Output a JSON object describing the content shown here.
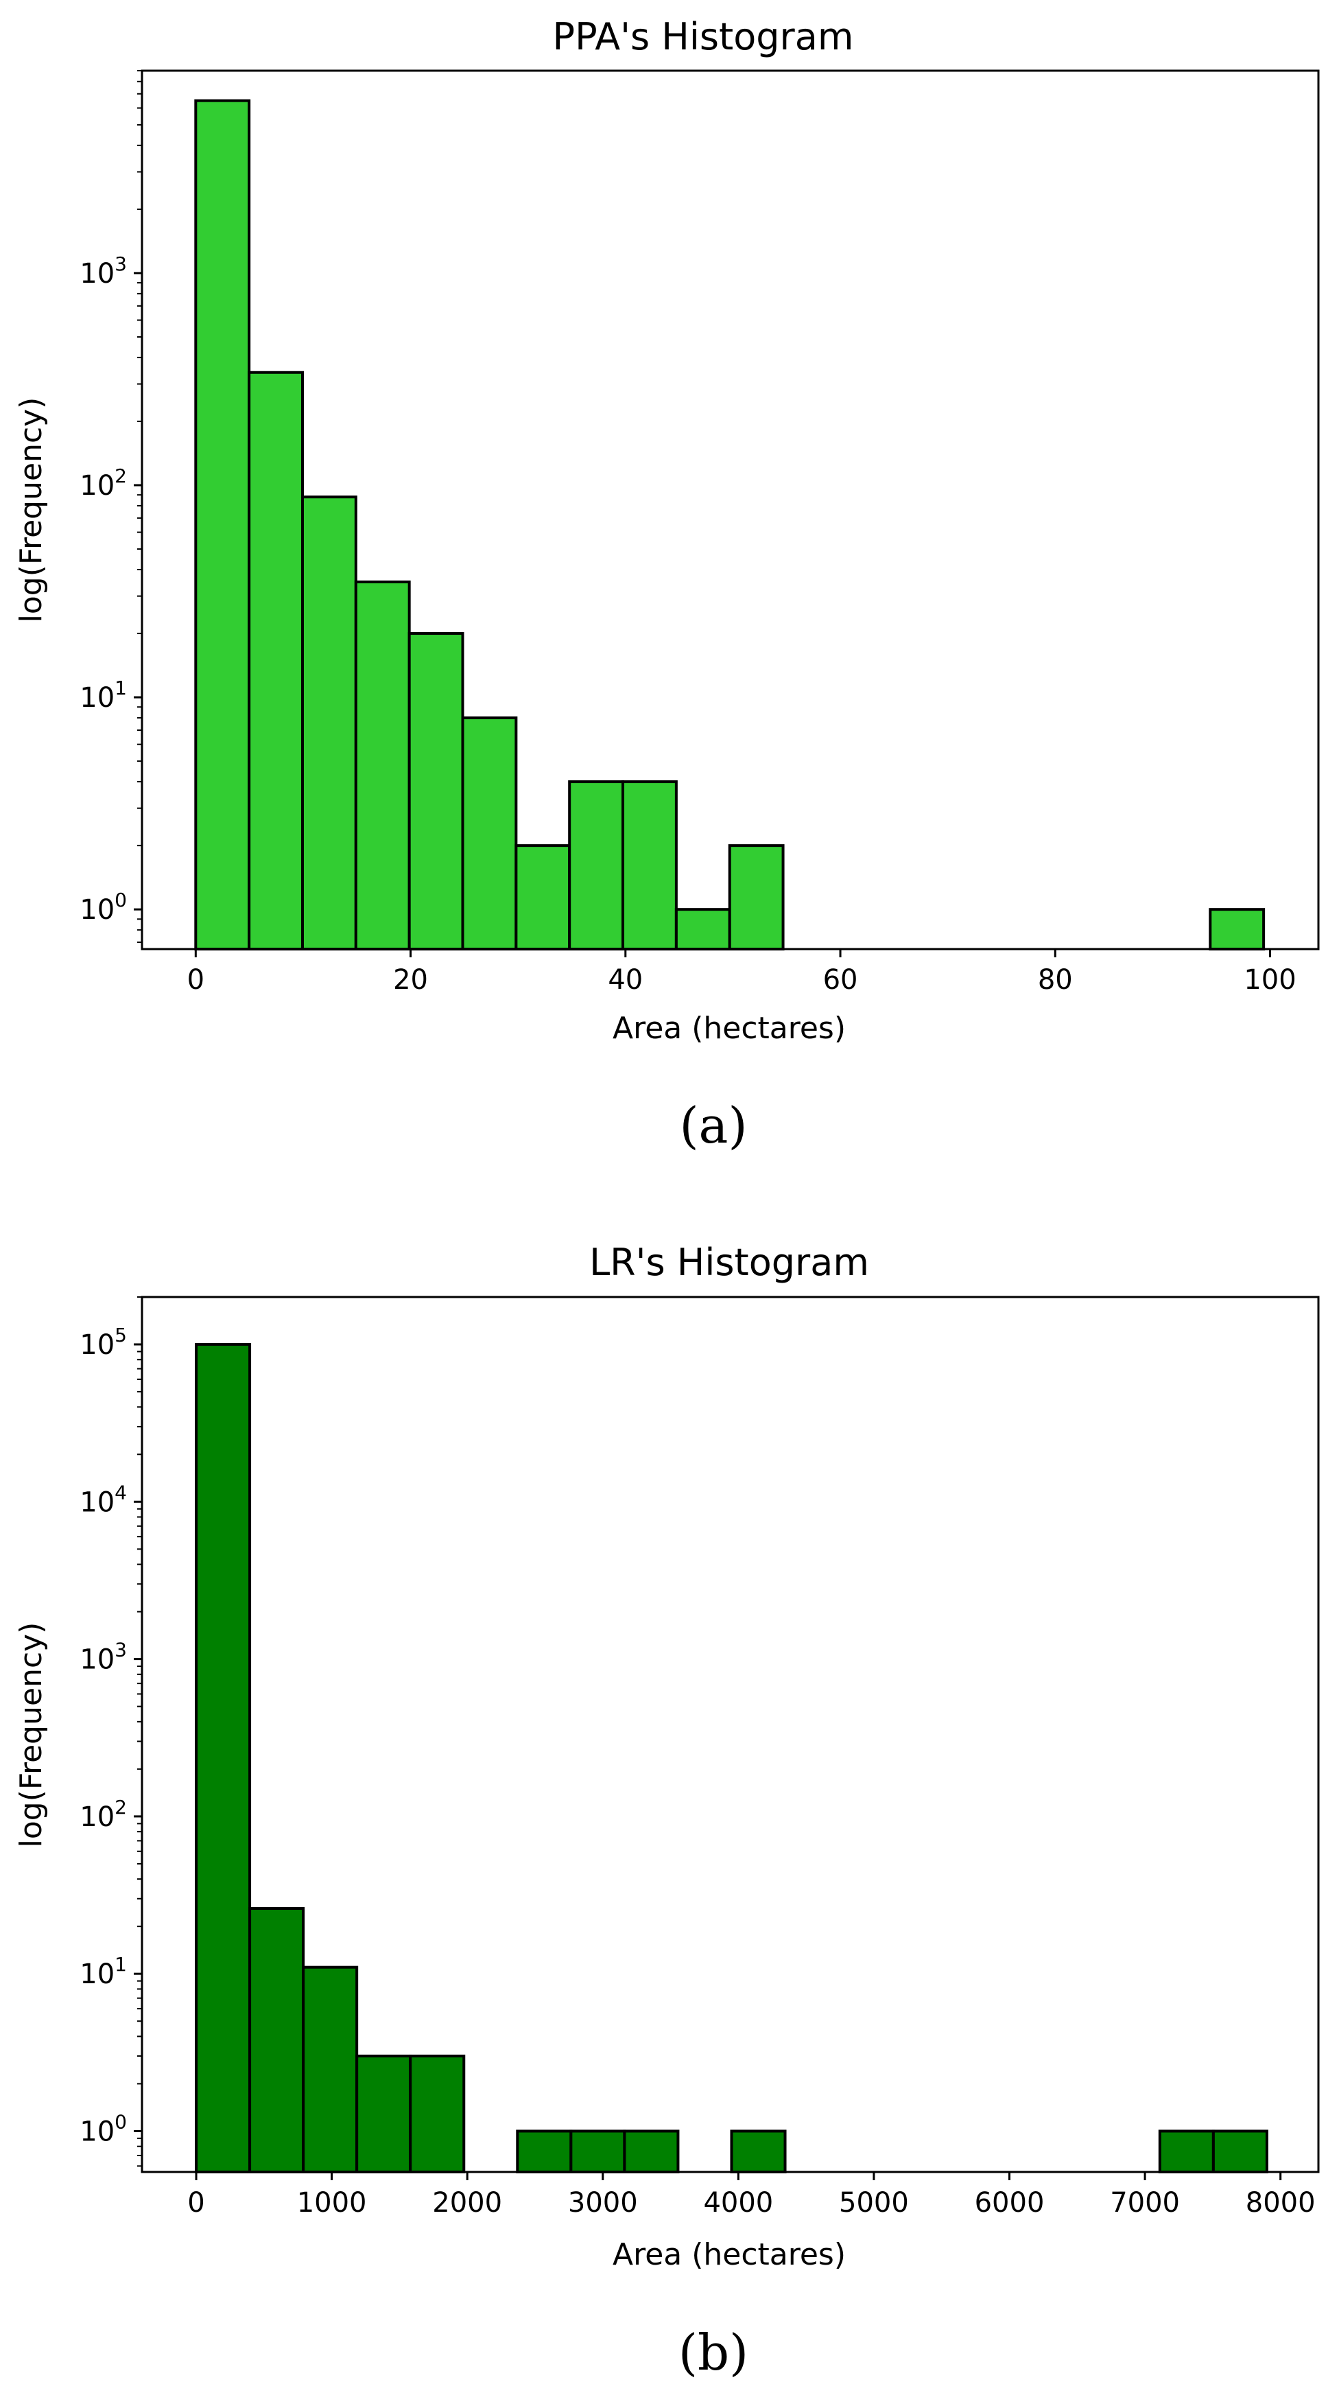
{
  "chart_data": [
    {
      "type": "bar",
      "title": "PPA's Histogram",
      "xlabel": "Area (hectares)",
      "ylabel": "log(Frequency)",
      "caption": "(a)",
      "color": "#32cd32",
      "yscale": "log",
      "xlim": [
        -5,
        104.5
      ],
      "ylim": [
        0.65,
        9000
      ],
      "grid": false,
      "xticks": [
        0,
        20,
        40,
        60,
        80,
        100
      ],
      "yticks": [
        {
          "value": 1,
          "base": "10",
          "exp": "0"
        },
        {
          "value": 10,
          "base": "10",
          "exp": "1"
        },
        {
          "value": 100,
          "base": "10",
          "exp": "2"
        },
        {
          "value": 1000,
          "base": "10",
          "exp": "3"
        }
      ],
      "bin_edges": [
        0,
        4.97,
        9.94,
        14.91,
        19.88,
        24.85,
        29.82,
        34.79,
        39.76,
        44.73,
        49.7,
        54.67,
        59.64,
        64.61,
        69.58,
        74.55,
        79.52,
        84.49,
        89.46,
        94.43,
        99.4
      ],
      "values": [
        6500,
        340,
        88,
        35,
        20,
        8,
        2,
        4,
        4,
        1,
        2,
        0,
        0,
        0,
        0,
        0,
        0,
        0,
        0,
        1
      ]
    },
    {
      "type": "bar",
      "title": "LR's Histogram",
      "xlabel": "Area (hectares)",
      "ylabel": "log(Frequency)",
      "caption": "(b)",
      "color": "#008000",
      "yscale": "log",
      "xlim": [
        -400,
        8280
      ],
      "ylim": [
        0.55,
        200000
      ],
      "grid": false,
      "xticks": [
        0,
        1000,
        2000,
        3000,
        4000,
        5000,
        6000,
        7000,
        8000
      ],
      "yticks": [
        {
          "value": 1,
          "base": "10",
          "exp": "0"
        },
        {
          "value": 10,
          "base": "10",
          "exp": "1"
        },
        {
          "value": 100,
          "base": "10",
          "exp": "2"
        },
        {
          "value": 1000,
          "base": "10",
          "exp": "3"
        },
        {
          "value": 10000,
          "base": "10",
          "exp": "4"
        },
        {
          "value": 100000,
          "base": "10",
          "exp": "5"
        }
      ],
      "bin_edges": [
        0,
        395,
        790,
        1185,
        1580,
        1975,
        2370,
        2765,
        3160,
        3555,
        3950,
        4345,
        4740,
        5135,
        5530,
        5925,
        6320,
        6715,
        7110,
        7505,
        7900
      ],
      "values": [
        100000,
        26,
        11,
        3,
        3,
        0,
        1,
        1,
        1,
        0,
        1,
        0,
        0,
        0,
        0,
        0,
        0,
        0,
        1,
        1
      ]
    }
  ]
}
